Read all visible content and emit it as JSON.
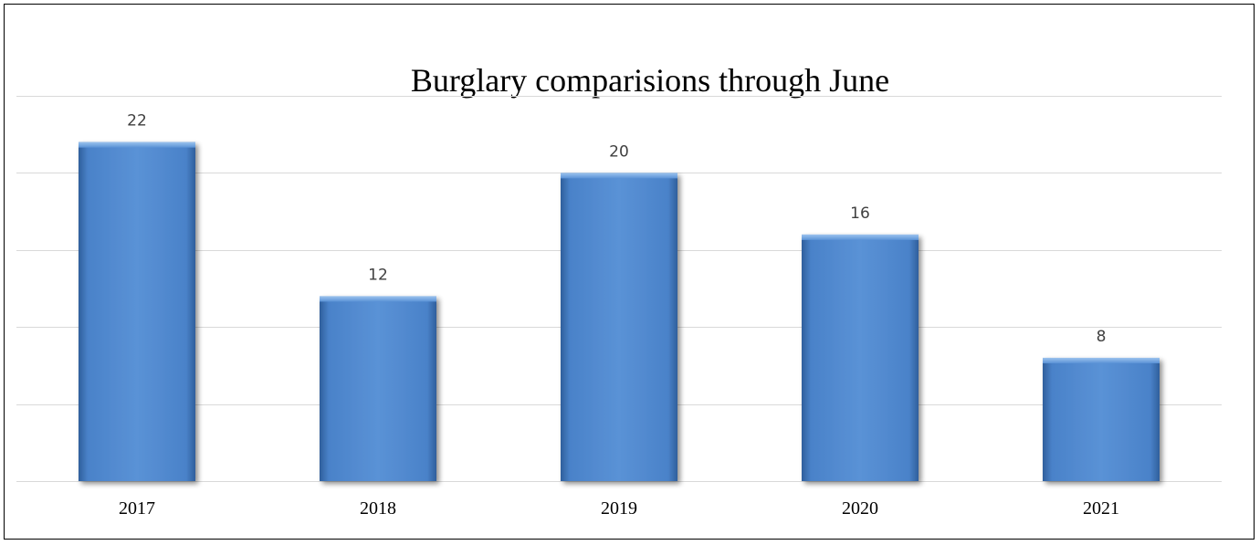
{
  "chart_data": {
    "type": "bar",
    "title": "Burglary comparisions through June",
    "categories": [
      "2017",
      "2018",
      "2019",
      "2020",
      "2021"
    ],
    "values": [
      22,
      12,
      20,
      16,
      8
    ],
    "ylim": [
      0,
      25
    ],
    "grid": true,
    "data_labels": true,
    "bar_color": "#4a82c9"
  }
}
